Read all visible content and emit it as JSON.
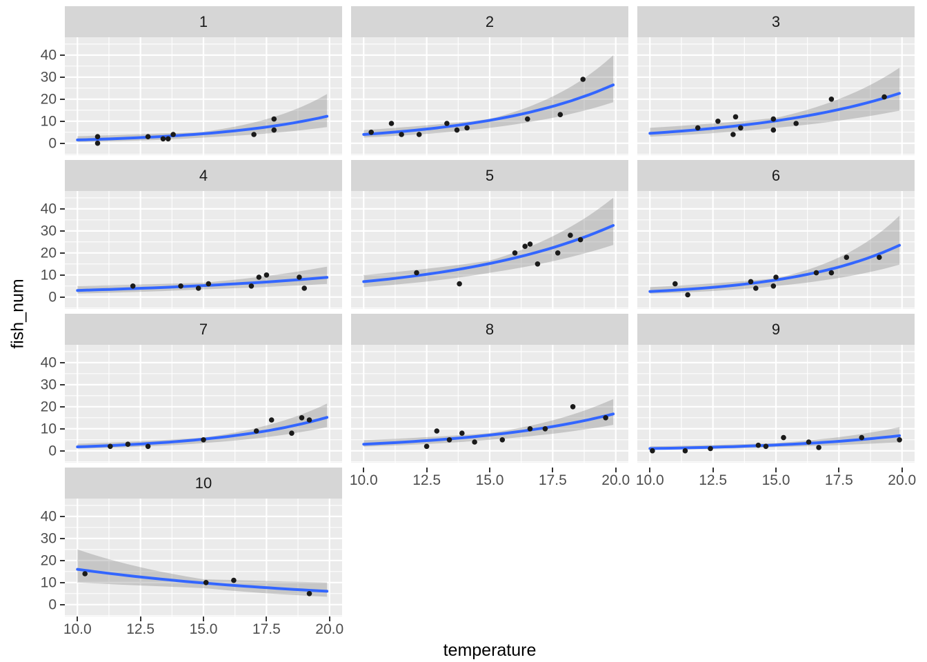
{
  "chart_data": {
    "type": "scatter",
    "title": "",
    "x_label": "temperature",
    "y_label": "fish_num",
    "facet_variable_values": [
      "1",
      "2",
      "3",
      "4",
      "5",
      "6",
      "7",
      "8",
      "9",
      "10"
    ],
    "x_domain": [
      9.5,
      20.5
    ],
    "y_domain": [
      -5.4,
      48.1
    ],
    "x_ticks": [
      10.0,
      12.5,
      15.0,
      17.5,
      20.0
    ],
    "x_tick_labels": [
      "10.0",
      "12.5",
      "15.0",
      "17.5",
      "20.0"
    ],
    "y_ticks": [
      0,
      10,
      20,
      30,
      40
    ],
    "y_tick_labels": [
      "0",
      "10",
      "20",
      "30",
      "40"
    ],
    "x_minor_breaks": [
      11.25,
      13.75,
      16.25,
      18.75
    ],
    "y_minor_breaks": [
      -5,
      5,
      15,
      25,
      35,
      45
    ],
    "grid": "on",
    "legend_position": "none",
    "smooth_x_range": [
      10.0,
      19.9
    ],
    "style": {
      "panel_bg": "#EBEBEB",
      "strip_bg": "#D6D6D6",
      "grid_color": "#FFFFFF",
      "smooth_line_color": "#3366FF",
      "ribbon_color": "rgba(125,125,125,0.33)",
      "point_color": "#1A1A1A",
      "tick_label_color": "#4D4D4D",
      "axis_title_color": "#000000"
    },
    "facets": [
      {
        "label": "1",
        "points": [
          [
            10.8,
            3
          ],
          [
            10.8,
            0
          ],
          [
            12.8,
            3
          ],
          [
            13.4,
            2
          ],
          [
            13.6,
            2
          ],
          [
            13.8,
            4
          ],
          [
            17.0,
            4
          ],
          [
            17.8,
            11
          ],
          [
            17.8,
            6
          ]
        ],
        "smooth": {
          "y_at_10": 1.5,
          "y_at_20": 12.5
        },
        "ribbon": {
          "x": [
            10,
            15,
            20
          ],
          "lower": [
            0.6,
            2.6,
            7.5
          ],
          "upper": [
            3.2,
            5.2,
            23
          ]
        }
      },
      {
        "label": "2",
        "points": [
          [
            10.3,
            5
          ],
          [
            11.1,
            9
          ],
          [
            11.5,
            4
          ],
          [
            12.2,
            4
          ],
          [
            13.3,
            9
          ],
          [
            13.7,
            6
          ],
          [
            14.1,
            7
          ],
          [
            16.5,
            11
          ],
          [
            17.8,
            13
          ],
          [
            18.7,
            29
          ]
        ],
        "smooth": {
          "y_at_10": 4.0,
          "y_at_20": 27.0
        },
        "ribbon": {
          "x": [
            10,
            15,
            20
          ],
          "lower": [
            2.6,
            7,
            19
          ],
          "upper": [
            6,
            11,
            41
          ]
        }
      },
      {
        "label": "3",
        "points": [
          [
            11.9,
            7
          ],
          [
            12.7,
            10
          ],
          [
            13.3,
            4
          ],
          [
            13.4,
            12
          ],
          [
            13.6,
            7
          ],
          [
            14.9,
            11
          ],
          [
            14.9,
            6
          ],
          [
            15.8,
            9
          ],
          [
            17.2,
            20
          ],
          [
            19.3,
            21
          ]
        ],
        "smooth": {
          "y_at_10": 4.5,
          "y_at_20": 23.0
        },
        "ribbon": {
          "x": [
            10,
            15,
            20
          ],
          "lower": [
            3,
            7,
            15
          ],
          "upper": [
            7,
            11.5,
            35
          ]
        }
      },
      {
        "label": "4",
        "points": [
          [
            12.2,
            5
          ],
          [
            14.1,
            5
          ],
          [
            14.8,
            4
          ],
          [
            15.2,
            6
          ],
          [
            16.9,
            5
          ],
          [
            17.2,
            9
          ],
          [
            17.5,
            10
          ],
          [
            18.8,
            9
          ],
          [
            19.0,
            4
          ]
        ],
        "smooth": {
          "y_at_10": 3.0,
          "y_at_20": 9.0
        },
        "ribbon": {
          "x": [
            10,
            15,
            20
          ],
          "lower": [
            1.6,
            3.5,
            6
          ],
          "upper": [
            5,
            6.5,
            14
          ]
        }
      },
      {
        "label": "5",
        "points": [
          [
            12.1,
            11
          ],
          [
            13.8,
            6
          ],
          [
            16.0,
            20
          ],
          [
            16.4,
            23
          ],
          [
            16.6,
            24
          ],
          [
            16.9,
            15
          ],
          [
            17.7,
            20
          ],
          [
            18.2,
            28
          ],
          [
            18.6,
            26
          ]
        ],
        "smooth": {
          "y_at_10": 7.0,
          "y_at_20": 33.0
        },
        "ribbon": {
          "x": [
            10,
            15,
            20
          ],
          "lower": [
            4.5,
            11,
            24
          ],
          "upper": [
            10,
            16.5,
            46
          ]
        }
      },
      {
        "label": "6",
        "points": [
          [
            11.0,
            6
          ],
          [
            11.5,
            1
          ],
          [
            14.0,
            7
          ],
          [
            14.2,
            4
          ],
          [
            14.9,
            5
          ],
          [
            15.0,
            9
          ],
          [
            16.6,
            11
          ],
          [
            17.2,
            11
          ],
          [
            17.8,
            18
          ],
          [
            19.1,
            18
          ]
        ],
        "smooth": {
          "y_at_10": 2.5,
          "y_at_20": 24.0
        },
        "ribbon": {
          "x": [
            10,
            15,
            20
          ],
          "lower": [
            1.5,
            5,
            15
          ],
          "upper": [
            4.5,
            8.5,
            38
          ]
        }
      },
      {
        "label": "7",
        "points": [
          [
            11.3,
            2
          ],
          [
            12.0,
            3
          ],
          [
            12.8,
            2
          ],
          [
            15.0,
            5
          ],
          [
            17.1,
            9
          ],
          [
            17.7,
            14
          ],
          [
            18.5,
            8
          ],
          [
            18.9,
            15
          ],
          [
            19.2,
            14
          ]
        ],
        "smooth": {
          "y_at_10": 1.8,
          "y_at_20": 15.5
        },
        "ribbon": {
          "x": [
            10,
            15,
            20
          ],
          "lower": [
            1,
            3.5,
            11
          ],
          "upper": [
            3.2,
            6,
            22
          ]
        }
      },
      {
        "label": "8",
        "points": [
          [
            12.5,
            2
          ],
          [
            12.9,
            9
          ],
          [
            13.4,
            5
          ],
          [
            13.9,
            8
          ],
          [
            14.4,
            4
          ],
          [
            15.5,
            5
          ],
          [
            16.6,
            10
          ],
          [
            17.2,
            10
          ],
          [
            18.3,
            20
          ],
          [
            19.6,
            15
          ]
        ],
        "smooth": {
          "y_at_10": 3.0,
          "y_at_20": 17.0
        },
        "ribbon": {
          "x": [
            10,
            15,
            20
          ],
          "lower": [
            1.9,
            5,
            12
          ],
          "upper": [
            4.8,
            8,
            24
          ]
        }
      },
      {
        "label": "9",
        "points": [
          [
            10.1,
            0
          ],
          [
            11.4,
            0
          ],
          [
            12.4,
            1
          ],
          [
            14.3,
            2.5
          ],
          [
            14.6,
            2
          ],
          [
            15.3,
            6
          ],
          [
            16.3,
            4
          ],
          [
            16.7,
            1.5
          ],
          [
            18.4,
            6
          ],
          [
            19.9,
            5
          ]
        ],
        "smooth": {
          "y_at_10": 1.0,
          "y_at_20": 7.0
        },
        "ribbon": {
          "x": [
            10,
            15,
            20
          ],
          "lower": [
            0.5,
            1.7,
            4
          ],
          "upper": [
            2,
            3.5,
            11
          ]
        }
      },
      {
        "label": "10",
        "points": [
          [
            10.3,
            14
          ],
          [
            15.1,
            10
          ],
          [
            16.2,
            11
          ],
          [
            19.2,
            5
          ]
        ],
        "smooth": {
          "y_at_10": 16.0,
          "y_at_20": 6.0
        },
        "ribbon": {
          "x": [
            10,
            15,
            20
          ],
          "lower": [
            10,
            7.5,
            3.5
          ],
          "upper": [
            25,
            11.5,
            10
          ]
        }
      }
    ]
  }
}
